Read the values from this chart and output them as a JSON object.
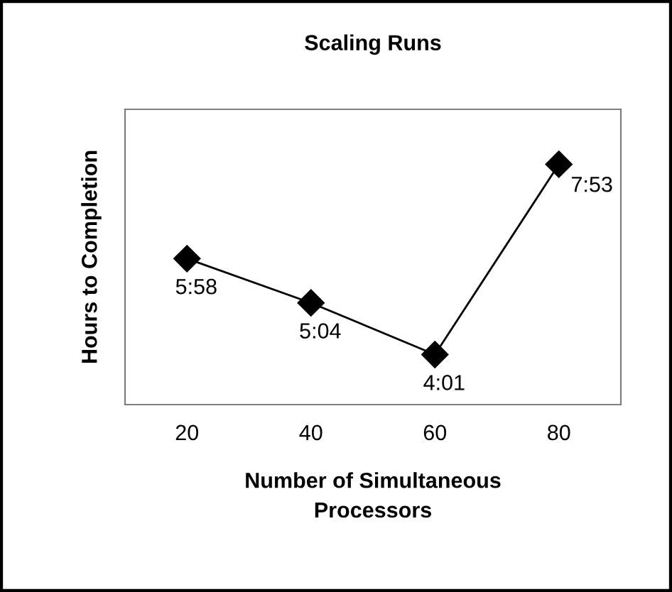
{
  "chart_data": {
    "type": "line",
    "title": "Scaling Runs",
    "xlabel": "Number of Simultaneous\nProcessors",
    "ylabel": "Hours to Completion",
    "categories": [
      "20",
      "40",
      "60",
      "80"
    ],
    "series": [
      {
        "color": "#000000",
        "values": [
          5.967,
          5.067,
          4.017,
          7.883
        ],
        "value_labels": [
          "5:58",
          "5:04",
          "4:01",
          "7:53"
        ]
      }
    ],
    "ylim": [
      3,
      9
    ],
    "tick_labels": "x",
    "marker": "diamond",
    "line_style": "solid"
  }
}
